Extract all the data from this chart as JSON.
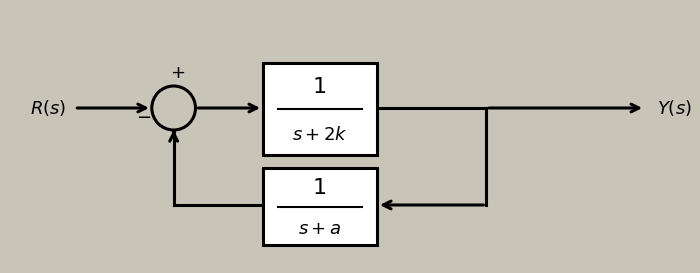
{
  "bg_color": "#c8c4b8",
  "line_color": "#000000",
  "box_color": "#ffffff",
  "figsize": [
    7.0,
    2.73
  ],
  "dpi": 100,
  "R_label": "$R(s)$",
  "Y_label": "$Y(s)$",
  "fwd_num": "1",
  "fwd_den": "$s + 2k$",
  "fb_num": "1",
  "fb_den": "$s + a$"
}
